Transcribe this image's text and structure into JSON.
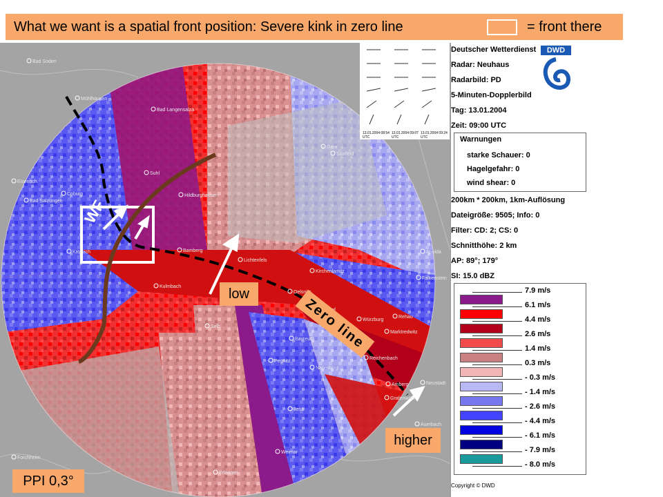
{
  "title": {
    "left": "What we want is a spatial front position: Severe kink in zero line",
    "right": "= front there"
  },
  "labels": {
    "low": "low",
    "higher": "higher",
    "zero_line": "Zero line",
    "wf": "WF",
    "ppi": "PPI 0,3°"
  },
  "header": {
    "org": "Deutscher Wetterdienst",
    "radar": "Radar: Neuhaus",
    "radarbild": "Radarbild: PD",
    "kind": "5-Minuten-Dopplerbild",
    "date": "Tag: 13.01.2004",
    "time": "Zeit: 09:00 UTC",
    "logo_text": "DWD"
  },
  "warnings": {
    "title": "Warnungen",
    "items": [
      "starke Schauer: 0",
      "Hagelgefahr: 0",
      "wind shear: 0"
    ]
  },
  "info": [
    "200km * 200km, 1km-Auflösung",
    "Dateigröße: 9505; Info: 0",
    "Filter: CD: 2; CS: 0",
    "Schnitthöhe: 2 km",
    "AP: 89°; 179°",
    "SI: 15.0 dBZ"
  ],
  "mini_times": [
    "13.01.2004 08:54 UTC",
    "13.01.2004 09:07 UTC",
    "13.01.2004 09:24 UTC"
  ],
  "legend": [
    {
      "value": "7.9 m/s",
      "color": "#ffffff"
    },
    {
      "value": "6.1 m/s",
      "color": "#8b1a8b"
    },
    {
      "value": "4.4 m/s",
      "color": "#ff0000"
    },
    {
      "value": "2.6 m/s",
      "color": "#b2001a"
    },
    {
      "value": "1.4 m/s",
      "color": "#f04a4a"
    },
    {
      "value": "0.3 m/s",
      "color": "#c98080"
    },
    {
      "value": "- 0.3 m/s",
      "color": "#f2b6b6"
    },
    {
      "value": "- 1.4 m/s",
      "color": "#b8b8f4"
    },
    {
      "value": "- 2.6 m/s",
      "color": "#7777ee"
    },
    {
      "value": "- 4.4 m/s",
      "color": "#4444ff"
    },
    {
      "value": "- 6.1 m/s",
      "color": "#0000e0"
    },
    {
      "value": "- 7.9 m/s",
      "color": "#000080"
    },
    {
      "value": "- 8.0 m/s",
      "color": "#1a9a9a"
    }
  ],
  "copyright": "Copyright © DWD",
  "cities": [
    "Bad Soden",
    "Mühlhausen",
    "Bad Langensalza",
    "Bad Salzungen",
    "Eisenach",
    "Suhl",
    "Hildburghausen",
    "Coburg",
    "Kronach",
    "Kulmbach",
    "Bayreuth",
    "Pegnitz",
    "Hof",
    "Plauen",
    "Würzburg",
    "Forchheim",
    "Erlangen",
    "Weimar",
    "Jena",
    "Gera",
    "Zwickau",
    "Saalfeld",
    "Lichtenfels",
    "Bamberg",
    "Selb",
    "Oelsnitz",
    "Kirchenlamitz",
    "Naumburg",
    "Apolda",
    "Falkenstein",
    "Marktredwitz",
    "Weiden",
    "Auerbach",
    "Grafenwöhr",
    "Reichenbach",
    "Amberg",
    "Rehau",
    "Neustadt"
  ],
  "colors": {
    "banner": "#f7a86a",
    "front_line": "#6b3a1e",
    "zero_line": "#000000",
    "box": "#ffffff",
    "arrow": "#ffffff"
  }
}
